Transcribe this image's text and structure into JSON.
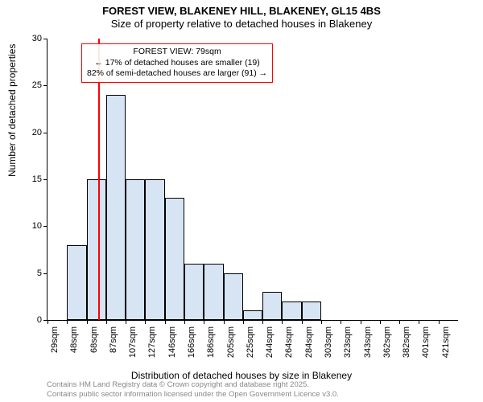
{
  "title": {
    "line1": "FOREST VIEW, BLAKENEY HILL, BLAKENEY, GL15 4BS",
    "line2": "Size of property relative to detached houses in Blakeney"
  },
  "chart": {
    "type": "bar",
    "bar_color": "#d7e4f4",
    "bar_border_color": "#000000",
    "background_color": "#ffffff",
    "reference_line_color": "#ff0000",
    "reference_x": 79,
    "x_min": 29,
    "x_max": 431,
    "ylim": [
      0,
      30
    ],
    "ytick_step": 5,
    "bin_width": 20,
    "bins": [
      {
        "start": 29,
        "count": 0
      },
      {
        "start": 48,
        "count": 8
      },
      {
        "start": 68,
        "count": 15
      },
      {
        "start": 87,
        "count": 24
      },
      {
        "start": 107,
        "count": 15
      },
      {
        "start": 127,
        "count": 15
      },
      {
        "start": 146,
        "count": 13
      },
      {
        "start": 166,
        "count": 6
      },
      {
        "start": 186,
        "count": 6
      },
      {
        "start": 205,
        "count": 5
      },
      {
        "start": 225,
        "count": 1
      },
      {
        "start": 244,
        "count": 3
      },
      {
        "start": 264,
        "count": 2
      },
      {
        "start": 284,
        "count": 2
      },
      {
        "start": 303,
        "count": 0
      },
      {
        "start": 323,
        "count": 0
      },
      {
        "start": 343,
        "count": 0
      },
      {
        "start": 362,
        "count": 0
      },
      {
        "start": 382,
        "count": 0
      },
      {
        "start": 401,
        "count": 0
      },
      {
        "start": 421,
        "count": 0
      }
    ],
    "xtick_labels": [
      "29sqm",
      "48sqm",
      "68sqm",
      "87sqm",
      "107sqm",
      "127sqm",
      "146sqm",
      "166sqm",
      "186sqm",
      "205sqm",
      "225sqm",
      "244sqm",
      "264sqm",
      "284sqm",
      "303sqm",
      "323sqm",
      "343sqm",
      "362sqm",
      "382sqm",
      "401sqm",
      "421sqm"
    ],
    "ylabel": "Number of detached properties",
    "xlabel": "Distribution of detached houses by size in Blakeney"
  },
  "annotation": {
    "line1": "FOREST VIEW: 79sqm",
    "line2": "← 17% of detached houses are smaller (19)",
    "line3": "82% of semi-detached houses are larger (91) →"
  },
  "footer": {
    "line1": "Contains HM Land Registry data © Crown copyright and database right 2025.",
    "line2": "Contains public sector information licensed under the Open Government Licence v3.0."
  },
  "style": {
    "title_fontsize": 13,
    "axis_label_fontsize": 12,
    "tick_fontsize": 11,
    "annotation_fontsize": 10.5,
    "footer_fontsize": 9.5,
    "footer_color": "#888888",
    "annotation_border_color": "#ff0000"
  }
}
